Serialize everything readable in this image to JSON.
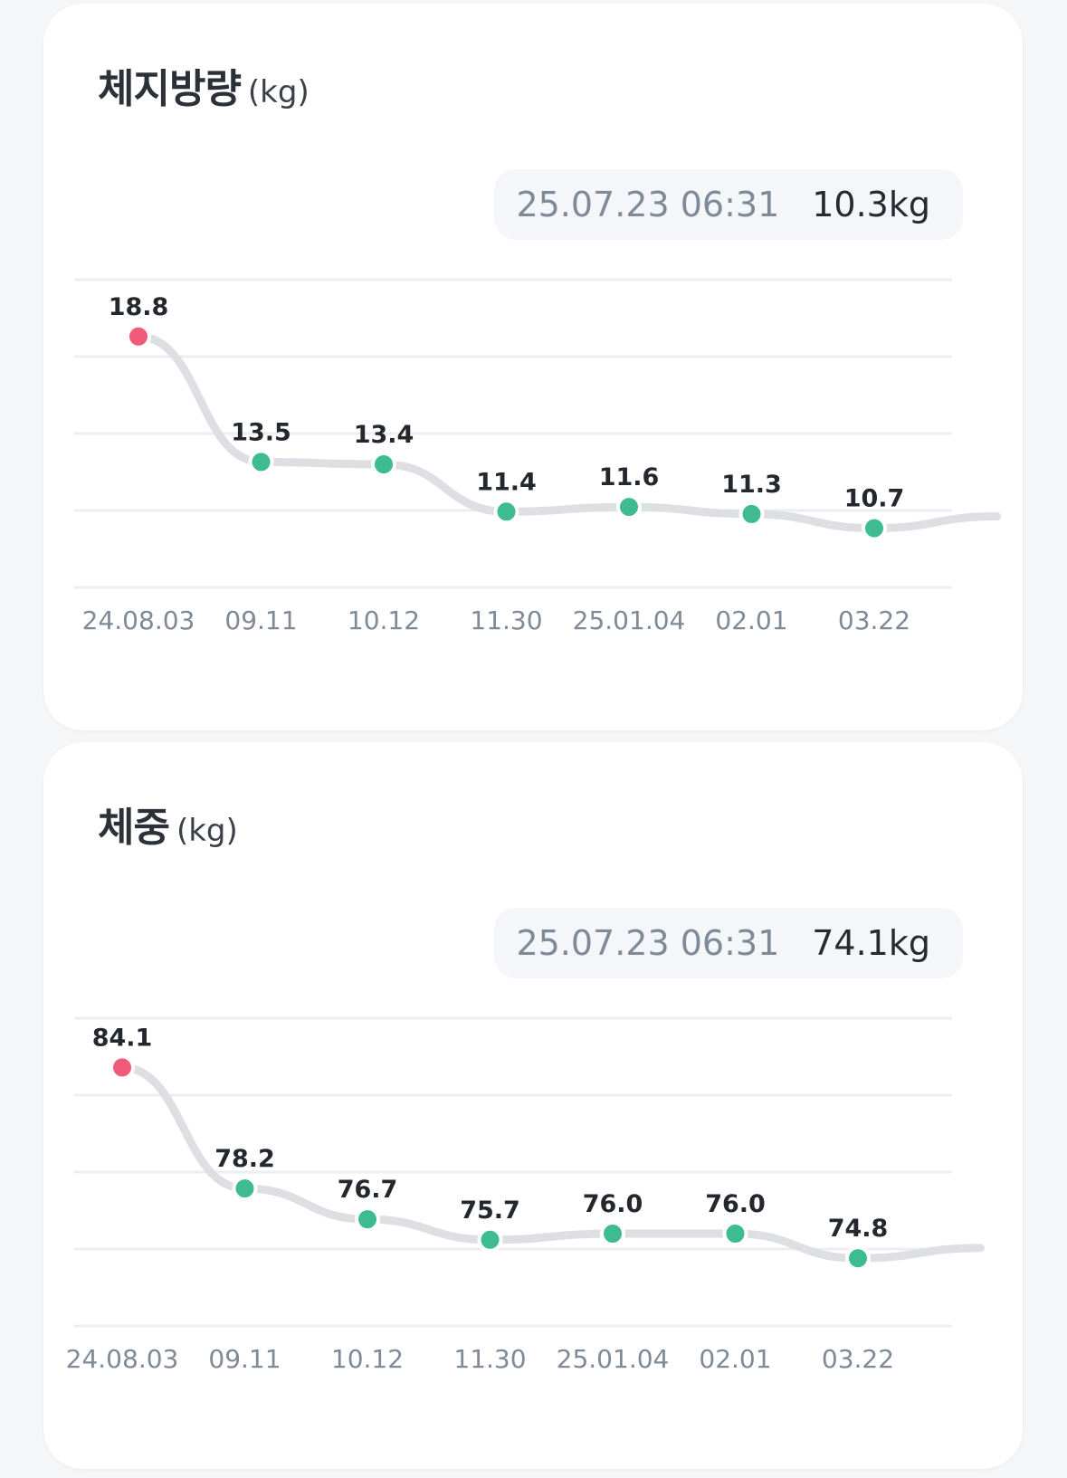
{
  "fat_card": {
    "title": "체지방량",
    "unit": "(kg)",
    "latest_date": "25.07.23 06:31",
    "latest_value": "10.3kg"
  },
  "weight_card": {
    "title": "체중",
    "unit": "(kg)",
    "latest_date": "25.07.23 06:31",
    "latest_value": "74.1kg"
  },
  "colors": {
    "highlight_point": "#ef5b78",
    "point": "#3fbb92",
    "line": "#dedfe3",
    "grid": "#eceef1",
    "tick_label": "#7f8a98",
    "data_label": "#23272e"
  },
  "chart_data": [
    {
      "type": "line",
      "x": [
        "24.08.03",
        "09.11",
        "10.12",
        "11.30",
        "25.01.04",
        "02.01",
        "03.22"
      ],
      "values": [
        18.8,
        13.5,
        13.4,
        11.4,
        11.6,
        11.3,
        10.7
      ],
      "value_labels": [
        "18.8",
        "13.5",
        "13.4",
        "11.4",
        "11.6",
        "11.3",
        "10.7"
      ],
      "trailing_value": 11.2,
      "ylim": [
        8.2,
        21.2
      ],
      "grid": true,
      "highlight_index": 0
    },
    {
      "type": "line",
      "x": [
        "24.08.03",
        "09.11",
        "10.12",
        "11.30",
        "25.01.04",
        "02.01",
        "03.22"
      ],
      "values": [
        84.1,
        78.2,
        76.7,
        75.7,
        76.0,
        76.0,
        74.8
      ],
      "value_labels": [
        "84.1",
        "78.2",
        "76.7",
        "75.7",
        "76.0",
        "76.0",
        "74.8"
      ],
      "trailing_value": 75.3,
      "ylim": [
        71.5,
        86.5
      ],
      "grid": true,
      "highlight_index": 0
    }
  ]
}
